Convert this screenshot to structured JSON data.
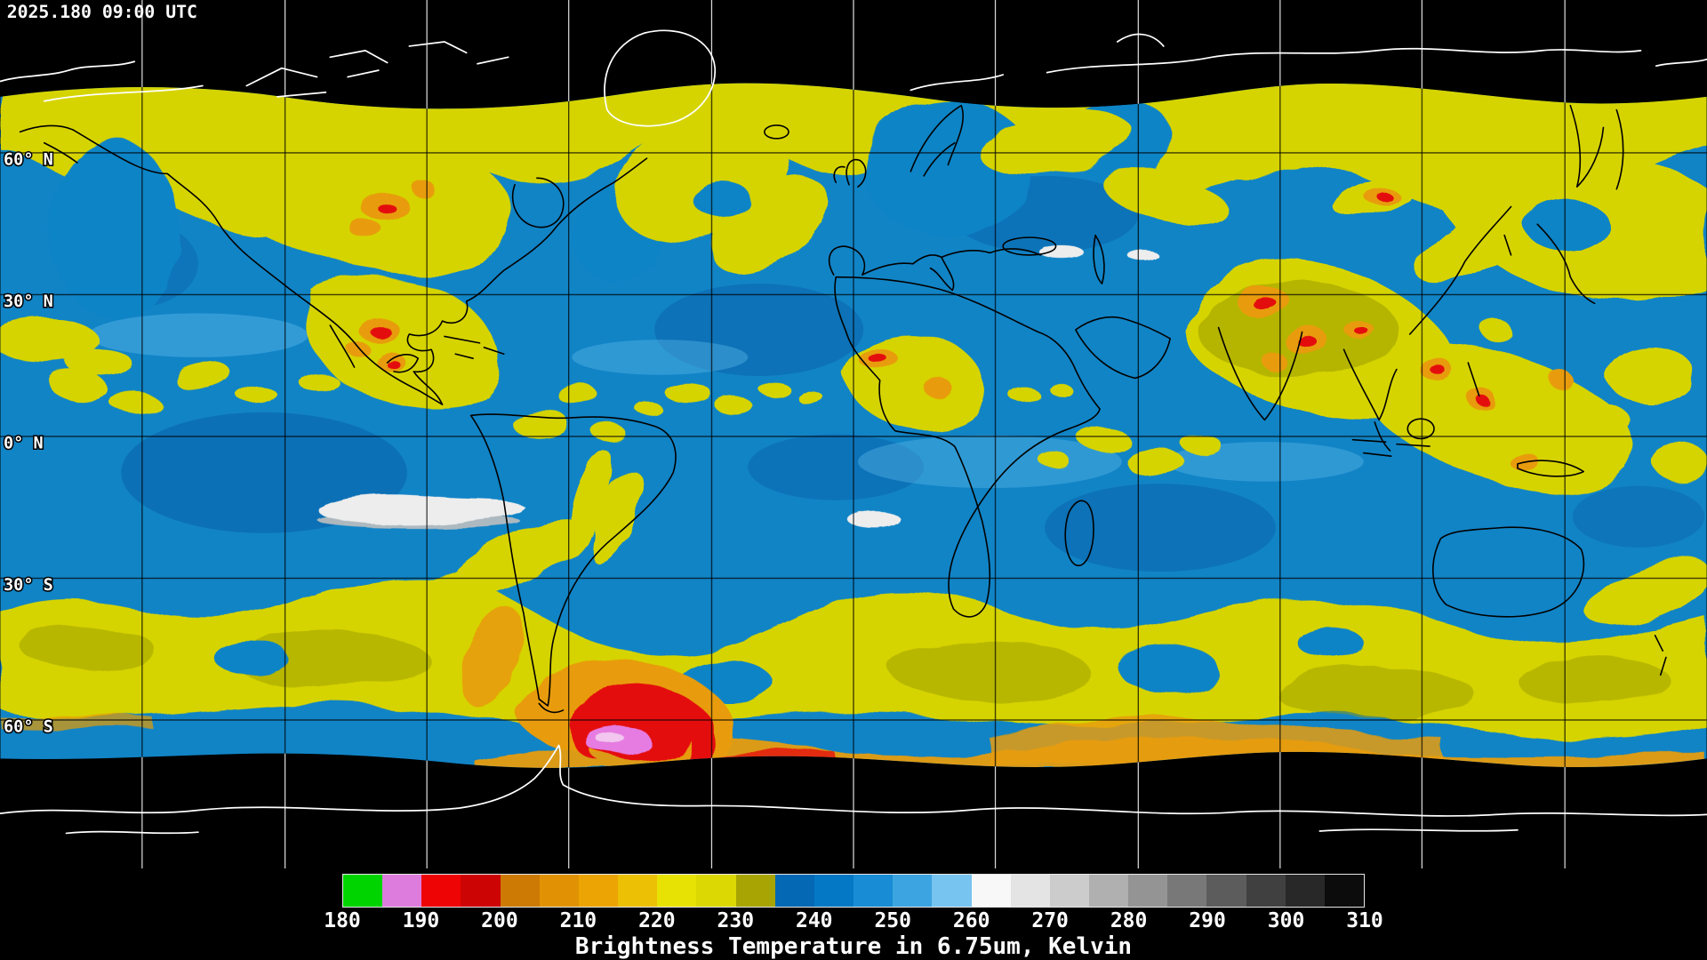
{
  "header": {
    "timestamp": "2025.180 09:00 UTC"
  },
  "map": {
    "latitude_labels": [
      "60° N",
      "30° N",
      "0° N",
      "30° S",
      "60° S"
    ],
    "palette": {
      "nodata_black": "#000000",
      "dry_air_blue": "#1184c6",
      "deep_blue": "#0b66ae",
      "light_blue": "#5cb8e8",
      "moist_yellow": "#d6d402",
      "olive": "#9a9a04",
      "cold_orange": "#e89c08",
      "very_cold_red": "#e41010",
      "coldest_magenta": "#e67ce2",
      "warm_white": "#ededed",
      "coastline_over_data": "#000000",
      "coastline_over_nodata": "#ffffff"
    }
  },
  "colorbar": {
    "unit_caption": "Brightness Temperature in 6.75um, Kelvin",
    "range_start": 180,
    "range_end": 310,
    "step_per_segment": 5,
    "ticks": [
      "180",
      "190",
      "200",
      "210",
      "220",
      "230",
      "240",
      "250",
      "260",
      "270",
      "280",
      "290",
      "300",
      "310"
    ],
    "segment_colors": [
      "#00d400",
      "#de7cde",
      "#ee0404",
      "#cc0404",
      "#cc7a04",
      "#e09204",
      "#eca404",
      "#ecc004",
      "#e8e204",
      "#dcd804",
      "#a8a404",
      "#0468b4",
      "#0478c4",
      "#188cd4",
      "#3ca4e0",
      "#78c4f0",
      "#f8f8f8",
      "#e4e4e4",
      "#cccccc",
      "#b0b0b0",
      "#949494",
      "#787878",
      "#5c5c5c",
      "#404040",
      "#282828",
      "#0c0c0c"
    ]
  }
}
